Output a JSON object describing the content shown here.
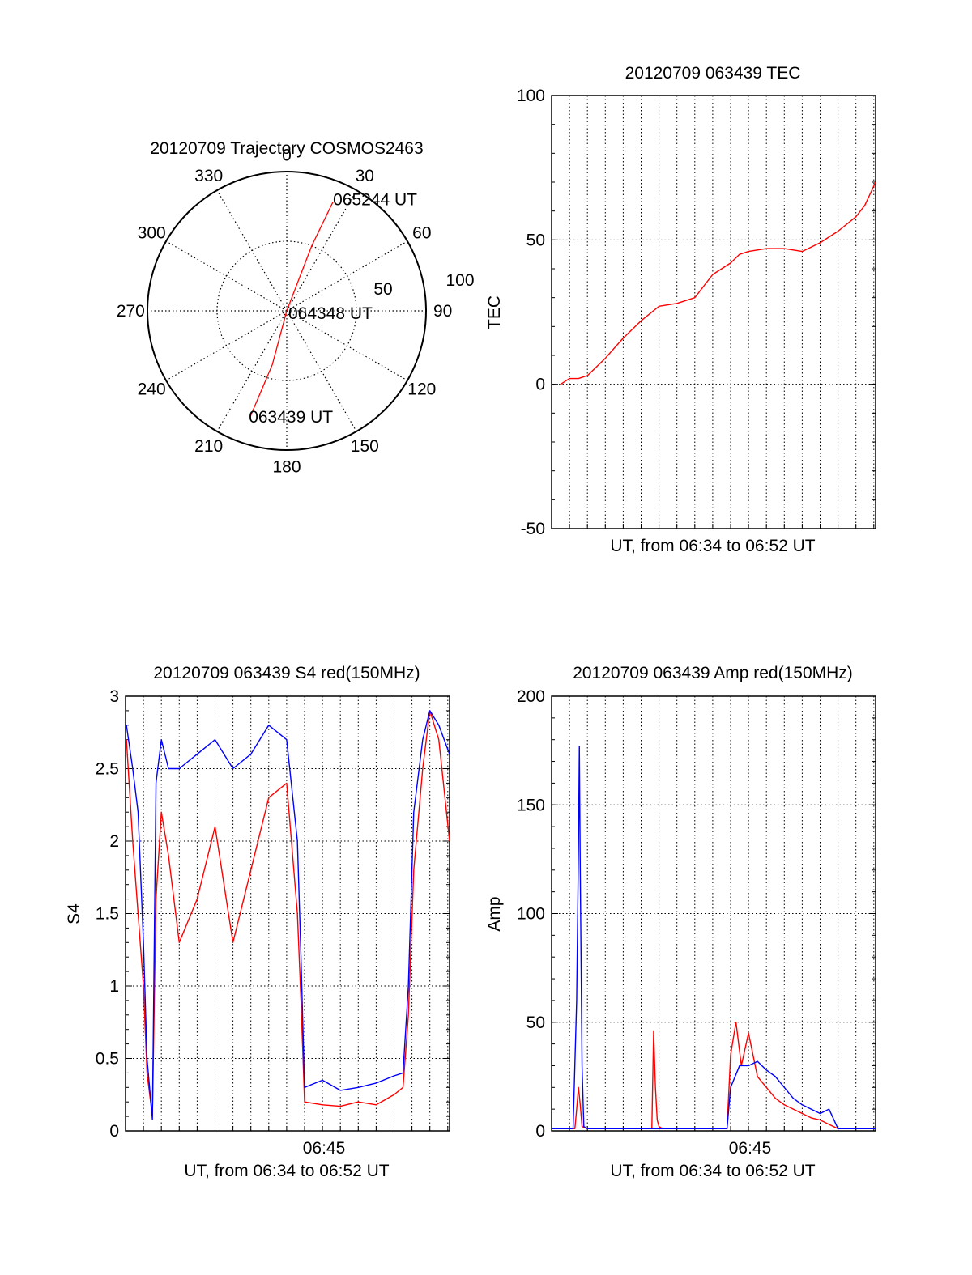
{
  "colors": {
    "red": "#ff0000",
    "blue": "#0000ff",
    "axis": "#000000",
    "grid": "#000000"
  },
  "chart_data": [
    {
      "type": "polar",
      "title": "20120709 Trajectory COSMOS2463",
      "angle_labels": [
        "0",
        "30",
        "60",
        "90",
        "120",
        "150",
        "180",
        "210",
        "240",
        "270",
        "300",
        "330"
      ],
      "radius_labels": [
        "50",
        "100"
      ],
      "rlim": [
        0,
        100
      ],
      "series": [
        {
          "color": "red",
          "points": [
            {
              "az": 199,
              "r": 80
            },
            {
              "az": 195,
              "r": 40
            },
            {
              "az": 0,
              "r": 0
            },
            {
              "az": 21,
              "r": 50
            },
            {
              "az": 23,
              "r": 85
            }
          ]
        }
      ],
      "annotations": [
        {
          "text": "065244 UT",
          "az": 23,
          "r": 85
        },
        {
          "text": "064348 UT",
          "az": 0,
          "r": 0
        },
        {
          "text": "063439 UT",
          "az": 199,
          "r": 80
        }
      ]
    },
    {
      "type": "line",
      "title": "20120709 063439 TEC",
      "xlabel": "UT, from 06:34 to 06:52 UT",
      "ylabel": "TEC",
      "xlim": [
        0,
        18.1
      ],
      "ylim": [
        -50,
        100
      ],
      "y_ticks": [
        "-50",
        "0",
        "50",
        "100"
      ],
      "grid": true,
      "series": [
        {
          "color": "red",
          "x": [
            0.5,
            1.0,
            1.5,
            2.0,
            3.0,
            4.0,
            5.0,
            6.0,
            7.0,
            8.0,
            9.0,
            9.5,
            10.0,
            10.5,
            11.0,
            12.0,
            13.0,
            14.0,
            15.0,
            16.0,
            17.0,
            17.5,
            18.1
          ],
          "y": [
            0,
            2,
            2,
            3,
            9,
            16,
            22,
            27,
            28,
            30,
            38,
            40,
            42,
            45,
            46,
            47,
            47,
            46,
            49,
            53,
            58,
            62,
            70
          ]
        }
      ]
    },
    {
      "type": "line",
      "title": "20120709 063439 S4 red(150MHz)",
      "xlabel": "UT, from 06:34 to 06:52 UT",
      "ylabel": "S4",
      "xlim": [
        0,
        18.1
      ],
      "ylim": [
        0,
        3
      ],
      "x_tick_label": "06:45",
      "x_tick_value": 11,
      "y_ticks": [
        "0",
        "0.5",
        "1",
        "1.5",
        "2",
        "2.5",
        "3"
      ],
      "grid": true,
      "series": [
        {
          "color": "red",
          "x": [
            0.05,
            0.4,
            0.7,
            1.0,
            1.2,
            1.5,
            1.7,
            2.0,
            2.4,
            3.0,
            4.0,
            5.0,
            6.0,
            7.0,
            8.0,
            9.0,
            9.6,
            9.8,
            10.0,
            11.0,
            12.0,
            13.0,
            14.0,
            15.0,
            15.5,
            15.8,
            16.1,
            16.6,
            17.0,
            17.5,
            18.1
          ],
          "y": [
            2.7,
            2.0,
            1.5,
            1.0,
            0.4,
            0.1,
            1.6,
            2.2,
            1.9,
            1.3,
            1.6,
            2.1,
            1.3,
            1.8,
            2.3,
            2.4,
            1.5,
            0.9,
            0.2,
            0.18,
            0.17,
            0.2,
            0.18,
            0.25,
            0.3,
            0.8,
            1.8,
            2.5,
            2.9,
            2.7,
            2.0
          ]
        },
        {
          "color": "blue",
          "x": [
            0.05,
            0.4,
            0.7,
            1.0,
            1.2,
            1.5,
            1.7,
            2.0,
            2.4,
            3.0,
            4.0,
            5.0,
            6.0,
            7.0,
            8.0,
            9.0,
            9.6,
            9.8,
            10.0,
            11.0,
            12.0,
            13.0,
            14.0,
            15.0,
            15.5,
            15.8,
            16.1,
            16.6,
            17.0,
            17.5,
            18.1
          ],
          "y": [
            2.8,
            2.5,
            2.2,
            1.3,
            0.5,
            0.08,
            2.4,
            2.7,
            2.5,
            2.5,
            2.6,
            2.7,
            2.5,
            2.6,
            2.8,
            2.7,
            2.0,
            1.2,
            0.3,
            0.35,
            0.28,
            0.3,
            0.33,
            0.38,
            0.4,
            1.0,
            2.2,
            2.7,
            2.9,
            2.8,
            2.6
          ]
        }
      ]
    },
    {
      "type": "line",
      "title": "20120709 063439 Amp red(150MHz)",
      "xlabel": "UT, from 06:34 to 06:52 UT",
      "ylabel": "Amp",
      "xlim": [
        0,
        18.1
      ],
      "ylim": [
        0,
        200
      ],
      "x_tick_label": "06:45",
      "x_tick_value": 11,
      "y_ticks": [
        "0",
        "50",
        "100",
        "150",
        "200"
      ],
      "grid": true,
      "series": [
        {
          "color": "red",
          "x": [
            0,
            1.3,
            1.4,
            1.5,
            1.6,
            1.7,
            2.0,
            5.0,
            5.6,
            5.7,
            5.8,
            5.9,
            6.0,
            6.2,
            9.8,
            10.0,
            10.3,
            10.6,
            11.0,
            11.5,
            12.0,
            12.5,
            13.0,
            13.5,
            14.0,
            14.5,
            15.0,
            15.5,
            16.0,
            18.1
          ],
          "y": [
            1,
            1,
            10,
            20,
            12,
            2,
            1,
            1,
            1,
            46,
            20,
            5,
            2,
            1,
            1,
            35,
            50,
            30,
            45,
            25,
            20,
            15,
            12,
            10,
            8,
            6,
            5,
            3,
            1,
            1
          ]
        },
        {
          "color": "blue",
          "x": [
            0,
            1.2,
            1.4,
            1.5,
            1.55,
            1.6,
            1.7,
            1.8,
            2.0,
            9.8,
            10.0,
            10.5,
            11.0,
            11.5,
            12.0,
            12.5,
            13.0,
            13.5,
            14.0,
            14.5,
            15.0,
            15.5,
            16.0,
            18.1
          ],
          "y": [
            1,
            1,
            60,
            130,
            177,
            120,
            30,
            2,
            1,
            1,
            20,
            30,
            30,
            32,
            28,
            25,
            20,
            15,
            12,
            10,
            8,
            10,
            1,
            1
          ]
        }
      ]
    }
  ]
}
